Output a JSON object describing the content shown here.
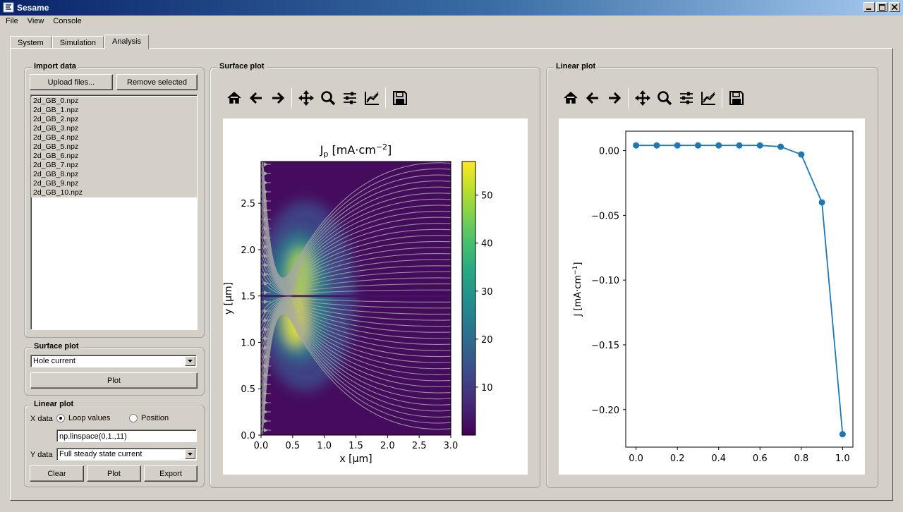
{
  "window": {
    "title": "Sesame",
    "menu": [
      "File",
      "View",
      "Console"
    ]
  },
  "tabs": [
    {
      "label": "System",
      "active": false
    },
    {
      "label": "Simulation",
      "active": false
    },
    {
      "label": "Analysis",
      "active": true
    }
  ],
  "import_data": {
    "title": "Import data",
    "upload_label": "Upload files...",
    "remove_label": "Remove selected",
    "files": [
      "2d_GB_0.npz",
      "2d_GB_1.npz",
      "2d_GB_2.npz",
      "2d_GB_3.npz",
      "2d_GB_4.npz",
      "2d_GB_5.npz",
      "2d_GB_6.npz",
      "2d_GB_7.npz",
      "2d_GB_8.npz",
      "2d_GB_9.npz",
      "2d_GB_10.npz"
    ]
  },
  "surface_controls": {
    "title": "Surface plot",
    "quantity": "Hole current",
    "plot_label": "Plot"
  },
  "linear_controls": {
    "title": "Linear plot",
    "xdata_label": "X data",
    "opt_loop": "Loop values",
    "opt_position": "Position",
    "selected": "Loop values",
    "xdata_value": "np.linspace(0,1.,11)",
    "ydata_label": "Y data",
    "ydata_value": "Full steady state current",
    "clear_label": "Clear",
    "plot_label": "Plot",
    "export_label": "Export"
  },
  "surface_panel": {
    "title": "Surface plot",
    "toolbar_icons": [
      "home-icon",
      "back-arrow-icon",
      "forward-arrow-icon",
      "pan-icon",
      "zoom-icon",
      "configure-subplots-icon",
      "edit-axis-icon",
      "save-icon"
    ]
  },
  "linear_panel": {
    "title": "Linear plot",
    "toolbar_icons": [
      "home-icon",
      "back-arrow-icon",
      "forward-arrow-icon",
      "pan-icon",
      "zoom-icon",
      "configure-subplots-icon",
      "edit-axis-icon",
      "save-icon"
    ]
  },
  "colors": {
    "series": "#1f77b4",
    "stream": "#a6a6a6"
  },
  "chart_data": [
    {
      "type": "heatmap",
      "title": "Jp [mA·cm⁻²]",
      "title_base": "J",
      "title_sub": "p",
      "title_rest": " [mA·cm",
      "title_sup": "−2",
      "title_end": "]",
      "xlabel": "x [µm]",
      "ylabel": "y [µm]",
      "xlim": [
        0,
        3.0
      ],
      "ylim": [
        0,
        2.95
      ],
      "xticks": [
        0.0,
        0.5,
        1.0,
        1.5,
        2.0,
        2.5,
        3.0
      ],
      "xtick_labels": [
        "0.0",
        "0.5",
        "1.0",
        "1.5",
        "2.0",
        "2.5",
        "3.0"
      ],
      "yticks": [
        0.0,
        0.5,
        1.0,
        1.5,
        2.0,
        2.5
      ],
      "ytick_labels": [
        "0.0",
        "0.5",
        "1.0",
        "1.5",
        "2.0",
        "2.5"
      ],
      "colorbar": {
        "range": [
          0,
          57
        ],
        "ticks": [
          10,
          20,
          30,
          40,
          50
        ],
        "tick_labels": [
          "10",
          "20",
          "30",
          "40",
          "50"
        ],
        "colormap": "viridis"
      },
      "hotspots": [
        {
          "x": 0.62,
          "y": 1.72,
          "value": 50
        },
        {
          "x": 0.55,
          "y": 1.25,
          "value": 55
        }
      ],
      "grain_boundary_y": 1.5,
      "streamlines": true
    },
    {
      "type": "line",
      "xlabel": "",
      "ylabel": "J [mA·cm⁻¹]",
      "ylabel_base": "J [mA·cm",
      "ylabel_sup": "−1",
      "ylabel_end": "]",
      "x": [
        0.0,
        0.1,
        0.2,
        0.3,
        0.4,
        0.5,
        0.6,
        0.7,
        0.8,
        0.9,
        1.0
      ],
      "y": [
        0.004,
        0.004,
        0.004,
        0.004,
        0.004,
        0.004,
        0.004,
        0.003,
        -0.003,
        -0.04,
        -0.219
      ],
      "xlim": [
        -0.05,
        1.05
      ],
      "ylim": [
        -0.229,
        0.015
      ],
      "xticks": [
        0.0,
        0.2,
        0.4,
        0.6,
        0.8,
        1.0
      ],
      "xtick_labels": [
        "0.0",
        "0.2",
        "0.4",
        "0.6",
        "0.8",
        "1.0"
      ],
      "yticks": [
        0.0,
        -0.05,
        -0.1,
        -0.15,
        -0.2
      ],
      "ytick_labels": [
        "0.00",
        "−0.05",
        "−0.10",
        "−0.15",
        "−0.20"
      ],
      "marker": "circle",
      "grid": false
    }
  ]
}
